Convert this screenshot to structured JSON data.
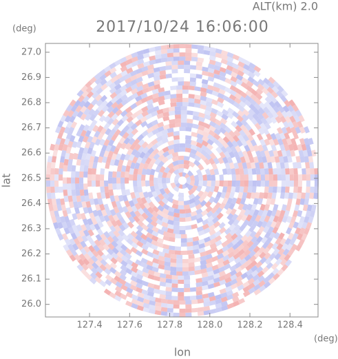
{
  "chart_data": {
    "type": "radar-ppi",
    "title": "2017/10/24 16:06:00",
    "subtitle": "ALT(km)  2.0",
    "y_unit": "(deg)",
    "x_unit": "(deg)",
    "ylabel": "lat",
    "xlabel": "lon",
    "xlim": [
      127.18,
      128.54
    ],
    "ylim": [
      25.95,
      27.035
    ],
    "xticks": [
      127.4,
      127.6,
      127.8,
      {
        "value": 128.0,
        "label": "128.0"
      },
      128.2,
      128.4
    ],
    "yticks": [
      {
        "value": 26.0,
        "label": "26.0"
      },
      26.1,
      26.2,
      26.3,
      26.4,
      26.5,
      26.6,
      26.7,
      26.8,
      26.9,
      {
        "value": 27.0,
        "label": "27.0"
      }
    ]
  }
}
